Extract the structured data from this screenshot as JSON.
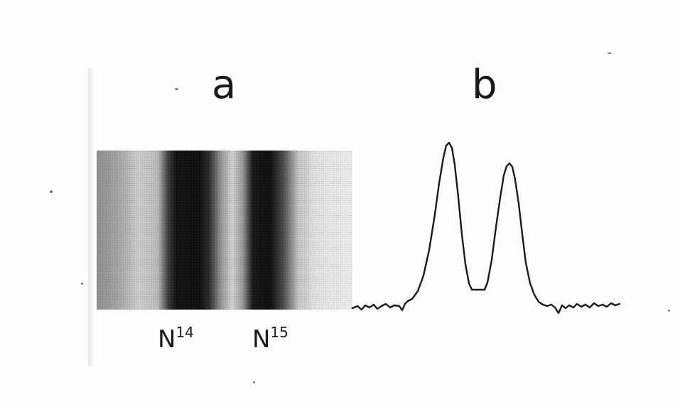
{
  "figure": {
    "panel_a_label": "a",
    "panel_b_label": "b",
    "bands": [
      {
        "element": "N",
        "mass_number": "14"
      },
      {
        "element": "N",
        "mass_number": "15"
      }
    ]
  },
  "colors": {
    "ink": "#1a1a1a",
    "paper": "#fdfdfd"
  }
}
